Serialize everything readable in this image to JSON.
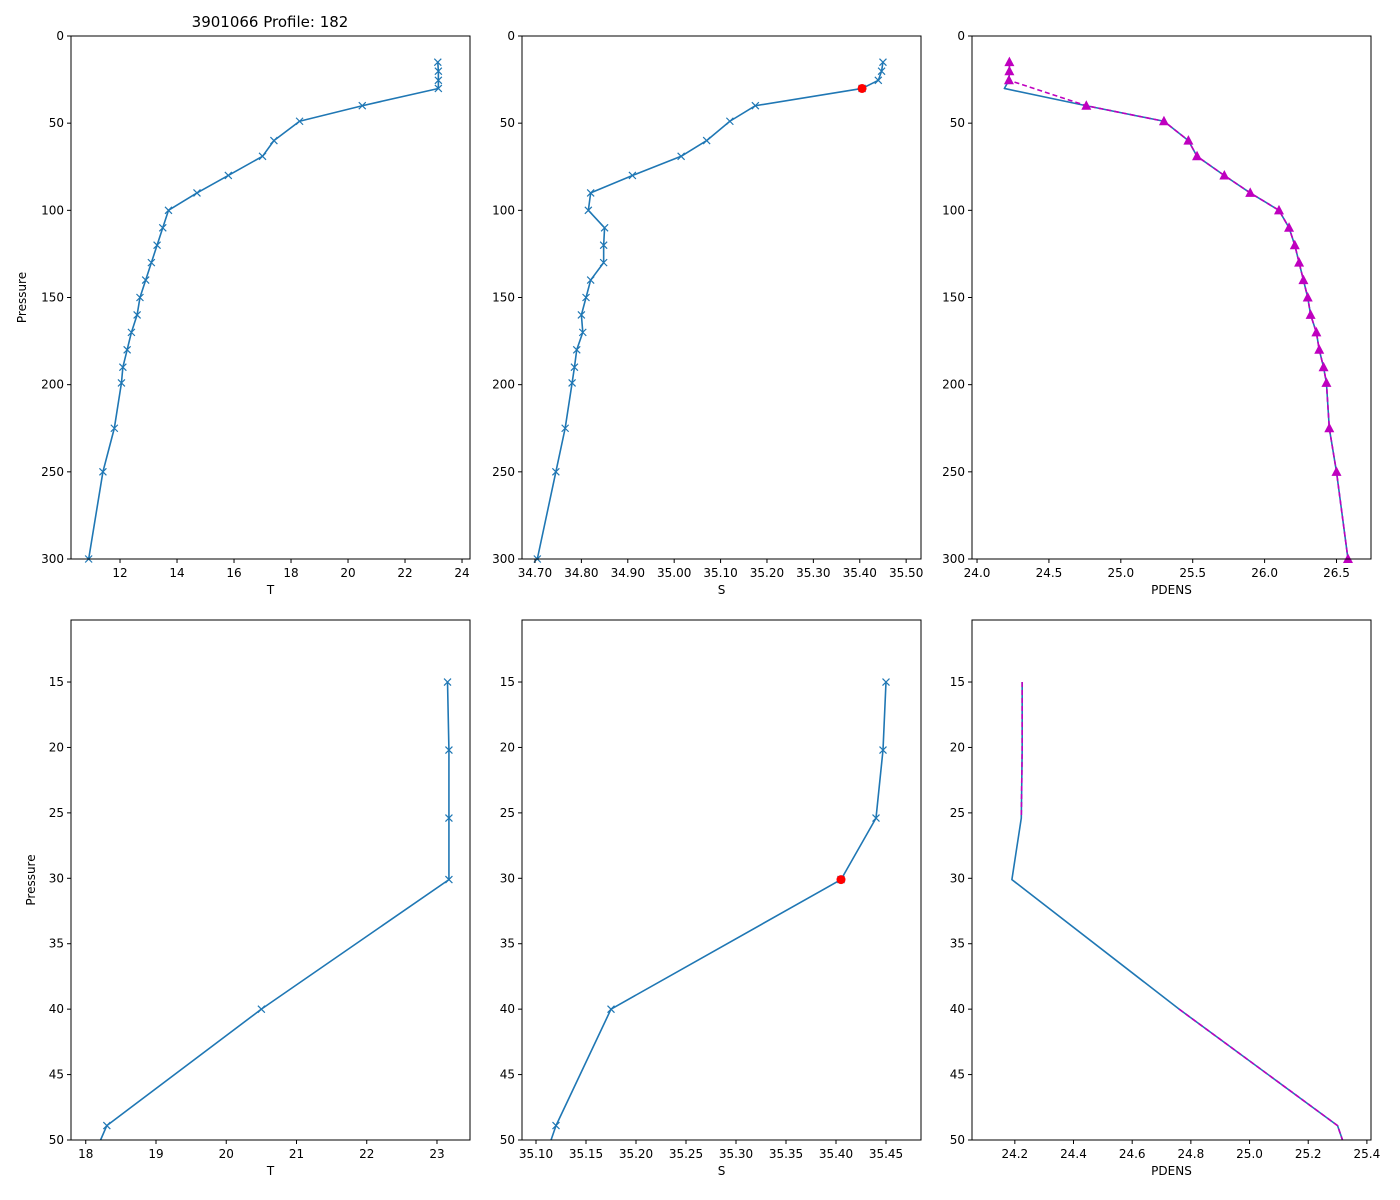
{
  "title": "3901066 Profile: 182",
  "colors": {
    "line": "#1f77b4",
    "flag": "#ff0000",
    "pdens2": "#bf00bf"
  },
  "chart_data": [
    {
      "type": "line",
      "id": "t-full",
      "xlabel": "T",
      "ylabel": "Pressure",
      "xlim": [
        10.28,
        24.28
      ],
      "ylim": [
        300,
        0
      ],
      "xticks": [
        12,
        14,
        16,
        18,
        20,
        22,
        24
      ],
      "yticks": [
        0,
        50,
        100,
        150,
        200,
        250,
        300
      ],
      "series": [
        {
          "name": "T",
          "marker": "x",
          "x": [
            23.15,
            23.17,
            23.17,
            23.17,
            20.5,
            18.3,
            17.4,
            17.0,
            15.8,
            14.7,
            13.7,
            13.5,
            13.3,
            13.1,
            12.9,
            12.7,
            12.6,
            12.4,
            12.25,
            12.1,
            12.05,
            11.8,
            11.4,
            10.9
          ],
          "y": [
            15,
            20.2,
            25.4,
            30.1,
            40,
            48.9,
            60,
            69,
            80,
            90,
            100,
            110,
            120,
            130,
            140,
            150,
            160,
            170,
            180,
            190,
            199,
            225,
            250,
            300
          ]
        }
      ]
    },
    {
      "type": "line",
      "id": "s-full",
      "xlabel": "S",
      "ylabel": "",
      "xlim": [
        34.672,
        35.532
      ],
      "ylim": [
        300,
        0
      ],
      "xticks": [
        34.7,
        34.8,
        34.9,
        35.0,
        35.1,
        35.2,
        35.3,
        35.4,
        35.5
      ],
      "yticks": [
        0,
        50,
        100,
        150,
        200,
        250,
        300
      ],
      "series": [
        {
          "name": "S",
          "marker": "x",
          "x": [
            35.45,
            35.447,
            35.44,
            35.405,
            35.175,
            35.12,
            35.07,
            35.015,
            34.91,
            34.82,
            34.815,
            34.85,
            34.848,
            34.848,
            34.82,
            34.81,
            34.8,
            34.803,
            34.79,
            34.785,
            34.78,
            34.765,
            34.745,
            34.705
          ],
          "y": [
            15,
            20.2,
            25.4,
            30.1,
            40,
            48.9,
            60,
            69,
            80,
            90,
            100,
            110,
            120,
            130,
            140,
            150,
            160,
            170,
            180,
            190,
            199,
            225,
            250,
            300
          ]
        },
        {
          "name": "S flagged",
          "marker": "dot",
          "x": [
            35.405
          ],
          "y": [
            30.1
          ]
        }
      ]
    },
    {
      "type": "line",
      "id": "pdens-full",
      "xlabel": "PDENS",
      "ylabel": "",
      "xlim": [
        23.965,
        26.74
      ],
      "ylim": [
        300,
        0
      ],
      "xticks": [
        24.0,
        24.5,
        25.0,
        25.5,
        26.0,
        26.5
      ],
      "yticks": [
        0,
        50,
        100,
        150,
        200,
        250,
        300
      ],
      "series": [
        {
          "name": "PDENS",
          "marker": "none",
          "x": [
            24.225,
            24.225,
            24.222,
            24.19,
            24.76,
            25.3,
            25.47,
            25.53,
            25.72,
            25.9,
            26.1,
            26.17,
            26.21,
            26.24,
            26.27,
            26.3,
            26.32,
            26.36,
            26.38,
            26.41,
            26.43,
            26.45,
            26.5,
            26.58
          ],
          "y": [
            15,
            20.2,
            25.4,
            30.1,
            40,
            48.9,
            60,
            69,
            80,
            90,
            100,
            110,
            120,
            130,
            140,
            150,
            160,
            170,
            180,
            190,
            199,
            225,
            250,
            300
          ]
        },
        {
          "name": "PDENS (computed)",
          "marker": "triangle",
          "dashed": true,
          "x": [
            24.225,
            24.225,
            24.222,
            24.76,
            25.3,
            25.47,
            25.53,
            25.72,
            25.9,
            26.1,
            26.17,
            26.21,
            26.24,
            26.27,
            26.3,
            26.32,
            26.36,
            26.38,
            26.41,
            26.43,
            26.45,
            26.5,
            26.58
          ],
          "y": [
            15,
            20.2,
            25.4,
            40,
            48.9,
            60,
            69,
            80,
            90,
            100,
            110,
            120,
            130,
            140,
            150,
            160,
            170,
            180,
            190,
            199,
            225,
            250,
            300
          ]
        }
      ]
    },
    {
      "type": "line",
      "id": "t-zoom",
      "xlabel": "T",
      "ylabel": "Pressure",
      "xlim": [
        17.79,
        23.47
      ],
      "ylim": [
        50,
        10.26
      ],
      "xticks": [
        18,
        19,
        20,
        21,
        22,
        23
      ],
      "yticks": [
        15,
        20,
        25,
        30,
        35,
        40,
        45,
        50
      ],
      "series": [
        {
          "name": "T",
          "marker": "x",
          "x": [
            23.15,
            23.17,
            23.17,
            23.17,
            20.5,
            18.3,
            17.4
          ],
          "y": [
            15,
            20.2,
            25.4,
            30.1,
            40,
            48.9,
            60
          ]
        }
      ]
    },
    {
      "type": "line",
      "id": "s-zoom",
      "xlabel": "S",
      "ylabel": "",
      "xlim": [
        35.086,
        35.485
      ],
      "ylim": [
        50,
        10.26
      ],
      "xticks": [
        35.1,
        35.15,
        35.2,
        35.25,
        35.3,
        35.35,
        35.4,
        35.45
      ],
      "yticks": [
        15,
        20,
        25,
        30,
        35,
        40,
        45,
        50
      ],
      "series": [
        {
          "name": "S",
          "marker": "x",
          "x": [
            35.45,
            35.447,
            35.44,
            35.405,
            35.175,
            35.12,
            35.07
          ],
          "y": [
            15,
            20.2,
            25.4,
            30.1,
            40,
            48.9,
            60
          ]
        },
        {
          "name": "S flagged",
          "marker": "dot",
          "x": [
            35.405
          ],
          "y": [
            30.1
          ]
        }
      ]
    },
    {
      "type": "line",
      "id": "pdens-zoom",
      "xlabel": "PDENS",
      "ylabel": "",
      "xlim": [
        24.054,
        25.414
      ],
      "ylim": [
        50,
        10.26
      ],
      "xticks": [
        24.2,
        24.4,
        24.6,
        24.8,
        25.0,
        25.2,
        25.4
      ],
      "yticks": [
        15,
        20,
        25,
        30,
        35,
        40,
        45,
        50
      ],
      "series": [
        {
          "name": "PDENS",
          "marker": "none",
          "x": [
            24.225,
            24.225,
            24.222,
            24.19,
            24.76,
            25.3,
            25.47
          ],
          "y": [
            15,
            20.2,
            25.4,
            30.1,
            40,
            48.9,
            60
          ]
        },
        {
          "name": "PDENS (computed)",
          "marker": "none",
          "dashed": true,
          "x": [
            24.225,
            24.225,
            24.222
          ],
          "y": [
            15,
            20.2,
            25.4
          ]
        },
        {
          "name": "PDENS (computed) deep",
          "marker": "none",
          "dashed": true,
          "x": [
            24.76,
            25.3,
            25.47
          ],
          "y": [
            40,
            48.9,
            60
          ]
        }
      ]
    }
  ]
}
